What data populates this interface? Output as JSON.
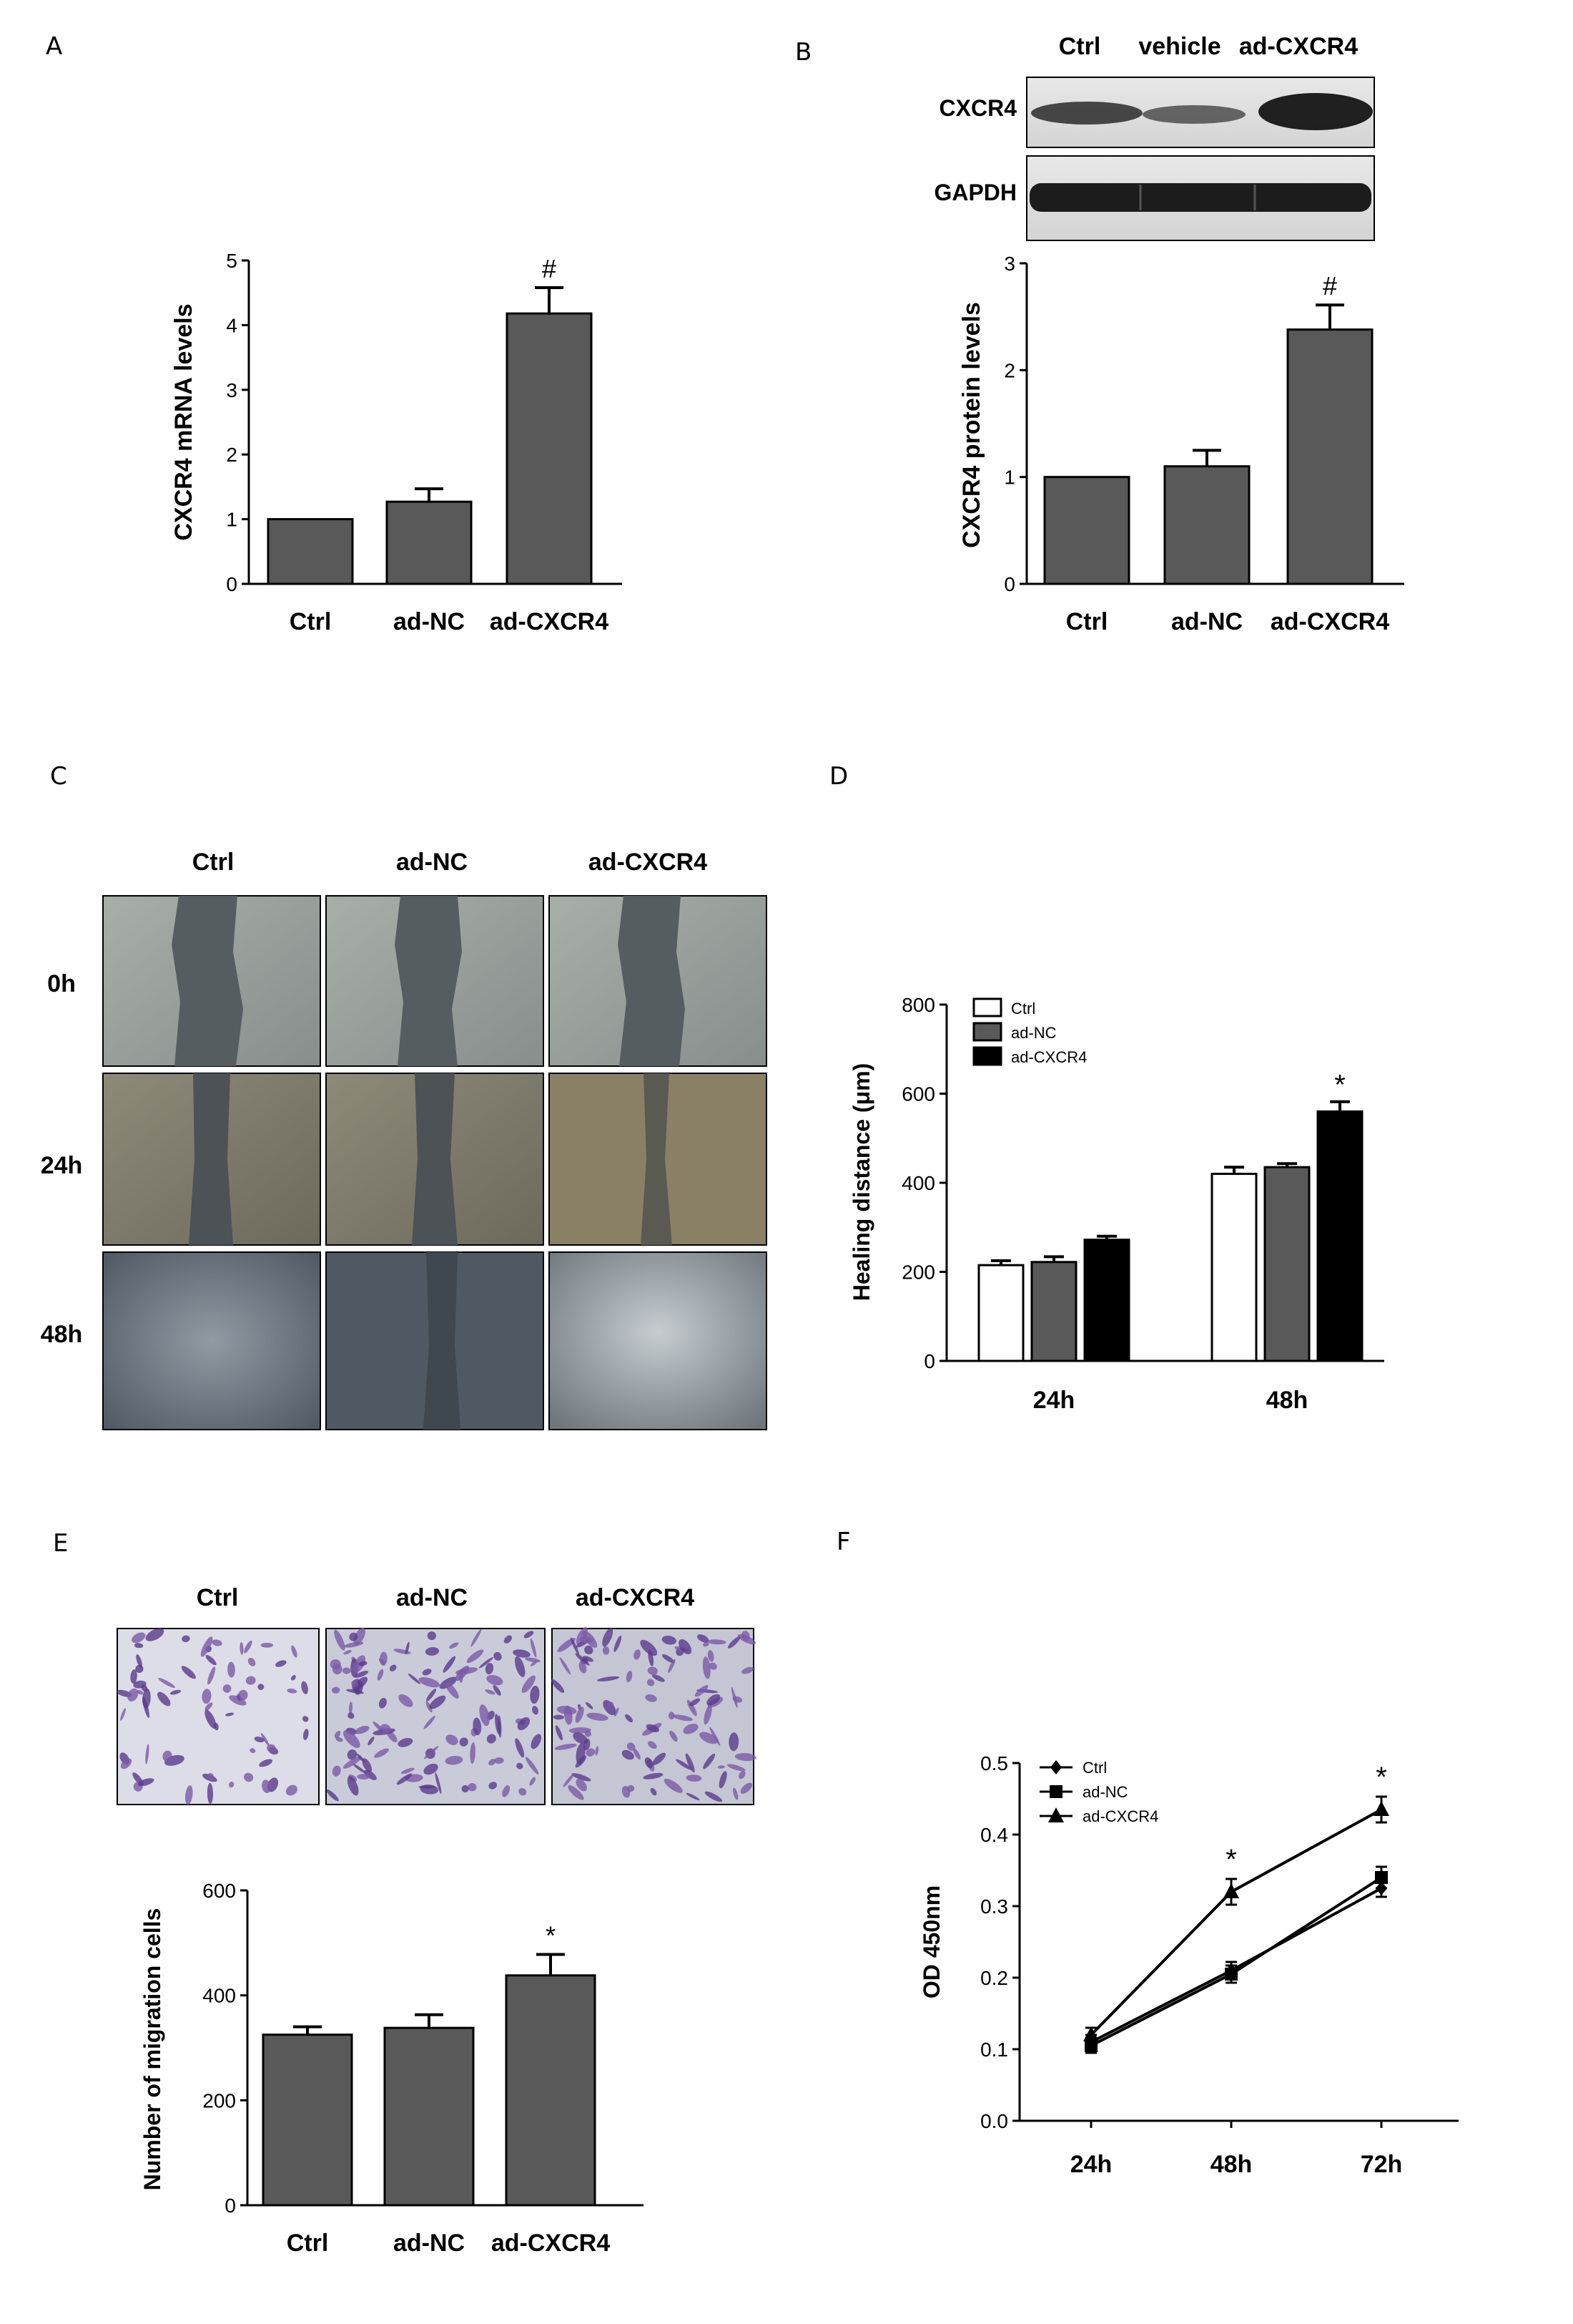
{
  "panels": {
    "A": "A",
    "B": "B",
    "C": "C",
    "D": "D",
    "E": "E",
    "F": "F"
  },
  "chart_data": [
    {
      "id": "A",
      "type": "bar",
      "categories": [
        "Ctrl",
        "ad-NC",
        "ad-CXCR4"
      ],
      "values": [
        1.0,
        1.27,
        4.18
      ],
      "errors": [
        0,
        0.2,
        0.4
      ],
      "annotations": [
        "",
        "",
        "#"
      ],
      "ylabel": "CXCR4  mRNA levels",
      "ylim": [
        0,
        5
      ],
      "yticks": [
        0,
        1,
        2,
        3,
        4,
        5
      ],
      "color": "#595959"
    },
    {
      "id": "B",
      "type": "bar",
      "categories": [
        "Ctrl",
        "ad-NC",
        "ad-CXCR4"
      ],
      "values": [
        1.0,
        1.1,
        2.38
      ],
      "errors": [
        0,
        0.15,
        0.23
      ],
      "annotations": [
        "",
        "",
        "#"
      ],
      "ylabel": "CXCR4  protein levels",
      "ylim": [
        0,
        3
      ],
      "yticks": [
        0,
        1,
        2,
        3
      ],
      "color": "#595959"
    },
    {
      "id": "D",
      "type": "bar",
      "categories": [
        "24h",
        "48h"
      ],
      "series": [
        {
          "name": "Ctrl",
          "values": [
            215,
            420
          ],
          "errors": [
            10,
            15
          ],
          "color": "#ffffff"
        },
        {
          "name": "ad-NC",
          "values": [
            222,
            435
          ],
          "errors": [
            12,
            8
          ],
          "color": "#595959"
        },
        {
          "name": "ad-CXCR4",
          "values": [
            272,
            560
          ],
          "errors": [
            8,
            22
          ],
          "color": "#000000"
        }
      ],
      "annotations": [
        {
          "category": "48h",
          "series": "ad-CXCR4",
          "text": "*"
        }
      ],
      "ylabel": "Healing distance (μm)",
      "ylim": [
        0,
        800
      ],
      "yticks": [
        0,
        200,
        400,
        600,
        800
      ],
      "legend": "top-left"
    },
    {
      "id": "E",
      "type": "bar",
      "categories": [
        "Ctrl",
        "ad-NC",
        "ad-CXCR4"
      ],
      "values": [
        325,
        338,
        438
      ],
      "errors": [
        15,
        25,
        40
      ],
      "annotations": [
        "",
        "",
        "*"
      ],
      "ylabel": "Number of migration cells",
      "ylim": [
        0,
        600
      ],
      "yticks": [
        0,
        200,
        400,
        600
      ],
      "color": "#595959"
    },
    {
      "id": "F",
      "type": "line",
      "x": [
        "24h",
        "48h",
        "72h"
      ],
      "series": [
        {
          "name": "Ctrl",
          "marker": "diamond",
          "values": [
            0.11,
            0.21,
            0.325
          ],
          "errors": [
            0.01,
            0.012,
            0.012
          ]
        },
        {
          "name": "ad-NC",
          "marker": "square",
          "values": [
            0.105,
            0.205,
            0.34
          ],
          "errors": [
            0.01,
            0.012,
            0.015
          ]
        },
        {
          "name": "ad-CXCR4",
          "marker": "triangle",
          "values": [
            0.12,
            0.32,
            0.435
          ],
          "errors": [
            0.01,
            0.018,
            0.018
          ]
        }
      ],
      "annotations": [
        {
          "x": "48h",
          "text": "*"
        },
        {
          "x": "72h",
          "text": "*"
        }
      ],
      "ylabel": "OD 450nm",
      "ylim": [
        0,
        0.5
      ],
      "yticks": [
        "0.0",
        "0.1",
        "0.2",
        "0.3",
        "0.4",
        "0.5"
      ],
      "legend": "top-left"
    }
  ],
  "western_blot": {
    "lanes": [
      "Ctrl",
      "vehicle",
      "ad-CXCR4"
    ],
    "bands": [
      "CXCR4",
      "GAPDH"
    ]
  },
  "scratch_assay": {
    "columns": [
      "Ctrl",
      "ad-NC",
      "ad-CXCR4"
    ],
    "rows": [
      "0h",
      "24h",
      "48h"
    ]
  },
  "transwell": {
    "columns": [
      "Ctrl",
      "ad-NC",
      "ad-CXCR4"
    ]
  }
}
